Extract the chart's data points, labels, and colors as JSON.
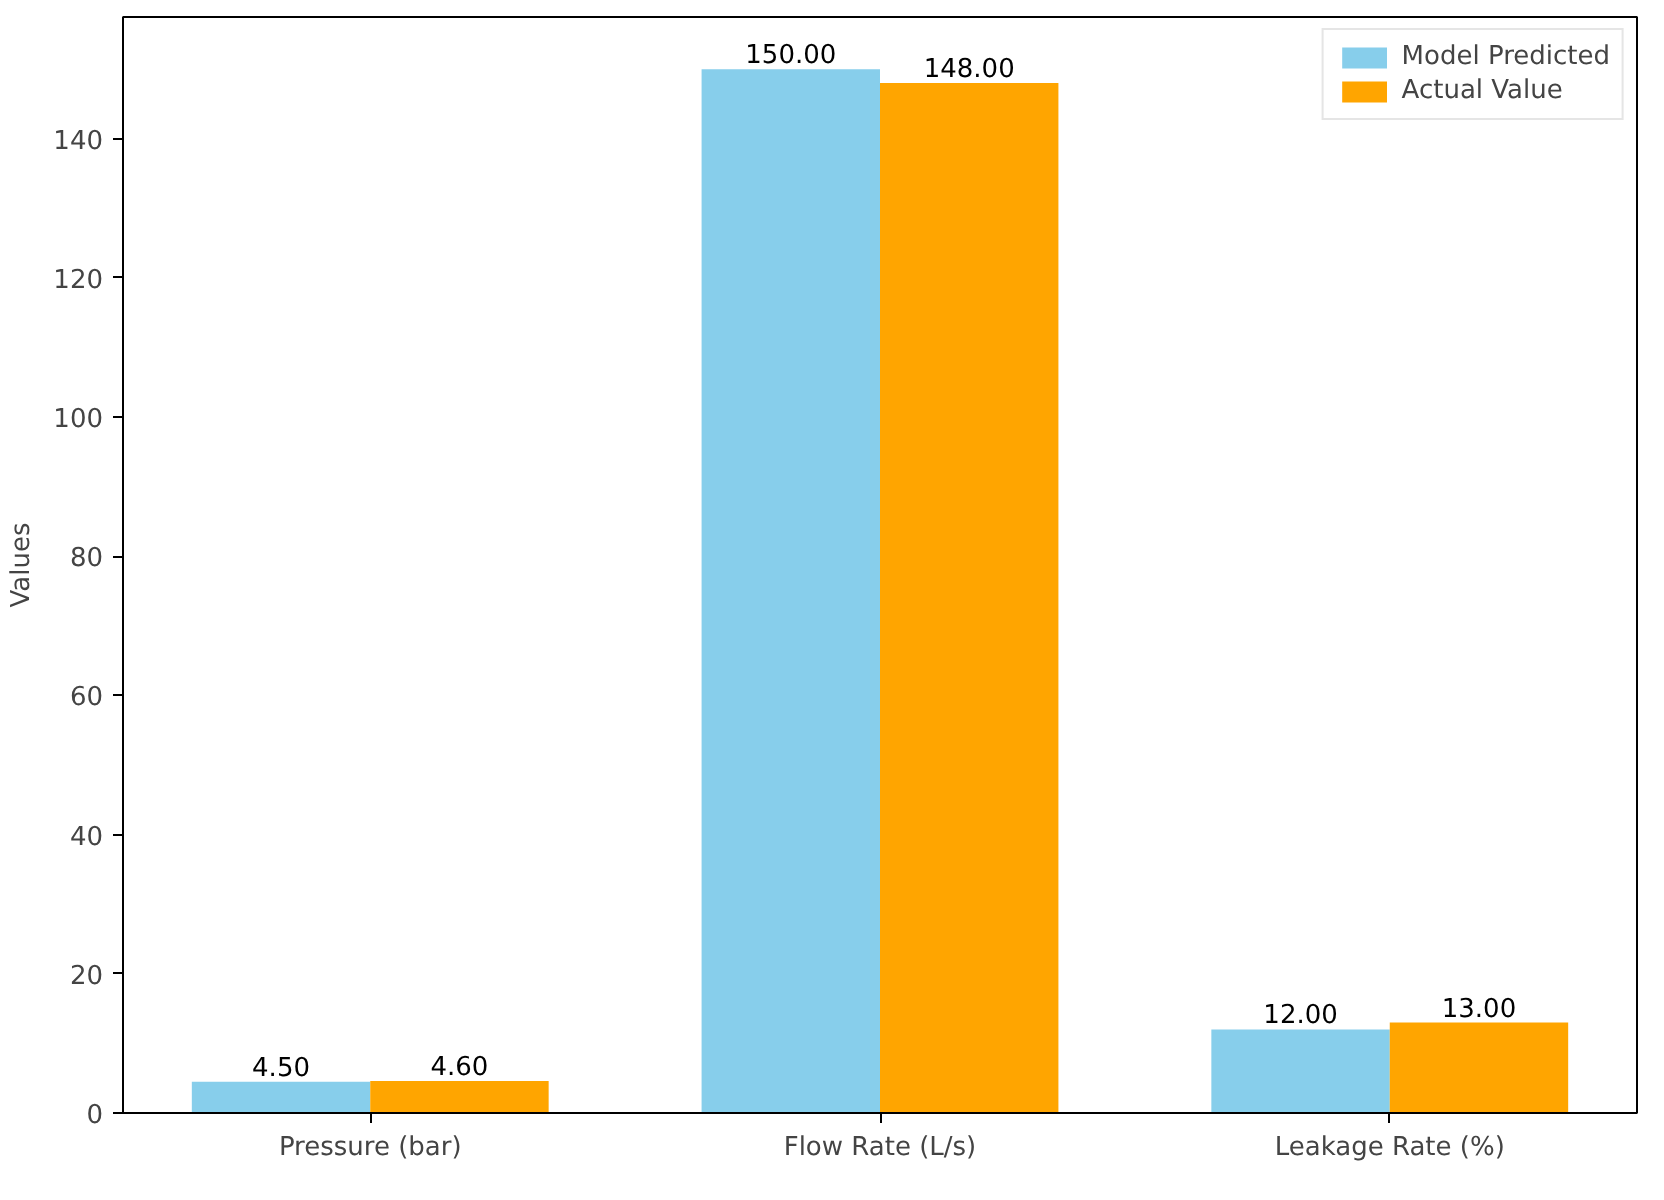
{
  "chart_data": {
    "type": "bar",
    "ylabel": "Values",
    "categories": [
      "Pressure (bar)",
      "Flow Rate (L/s)",
      "Leakage Rate (%)"
    ],
    "series": [
      {
        "name": "Model Predicted",
        "color": "#87ceeb",
        "values": [
          4.5,
          150,
          12
        ],
        "value_labels": [
          "4.50",
          "150.00",
          "12.00"
        ]
      },
      {
        "name": "Actual Value",
        "color": "#ffa500",
        "values": [
          4.6,
          148,
          13
        ],
        "value_labels": [
          "4.60",
          "148.00",
          "13.00"
        ]
      }
    ],
    "ylim": [
      0,
      157.5
    ],
    "yticks": [
      0,
      20,
      40,
      60,
      80,
      100,
      120,
      140
    ],
    "grid": false,
    "legend": "top right"
  }
}
